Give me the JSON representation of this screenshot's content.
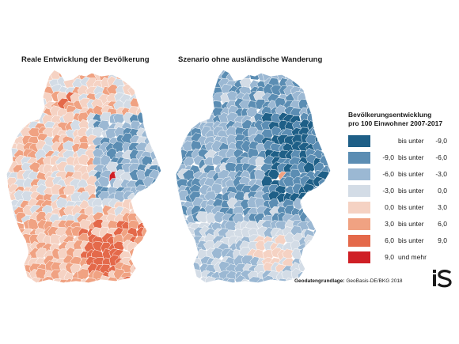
{
  "maps": [
    {
      "title": "Reale Entwicklung der Bevölkerung",
      "palette": "real"
    },
    {
      "title": "Szenario ohne ausländische Wanderung",
      "palette": "scenario"
    }
  ],
  "legend": {
    "title_line1": "Bevölkerungsentwicklung",
    "title_line2": "pro 100 Einwohner 2007-2017",
    "classes": [
      {
        "from": "",
        "word": "bis unter",
        "to": "-9,0",
        "color": "#1e5f87"
      },
      {
        "from": "-9,0",
        "word": "bis unter",
        "to": "-6,0",
        "color": "#5b8db3"
      },
      {
        "from": "-6,0",
        "word": "bis unter",
        "to": "-3,0",
        "color": "#9bb8d3"
      },
      {
        "from": "-3,0",
        "word": "bis unter",
        "to": "0,0",
        "color": "#d3dce6"
      },
      {
        "from": "0,0",
        "word": "bis unter",
        "to": "3,0",
        "color": "#f5d2c3"
      },
      {
        "from": "3,0",
        "word": "bis unter",
        "to": "6,0",
        "color": "#f0a282"
      },
      {
        "from": "6,0",
        "word": "bis unter",
        "to": "9,0",
        "color": "#e4694a"
      },
      {
        "from": "9,0",
        "word": "und mehr",
        "to": "",
        "color": "#cf1f25"
      }
    ]
  },
  "source": {
    "label": "Geodatengrundlage:",
    "value": "GeoBasis-DE/BKG 2018"
  },
  "logo": {
    "name": "is-logo-icon",
    "color": "#1a1a1a"
  }
}
